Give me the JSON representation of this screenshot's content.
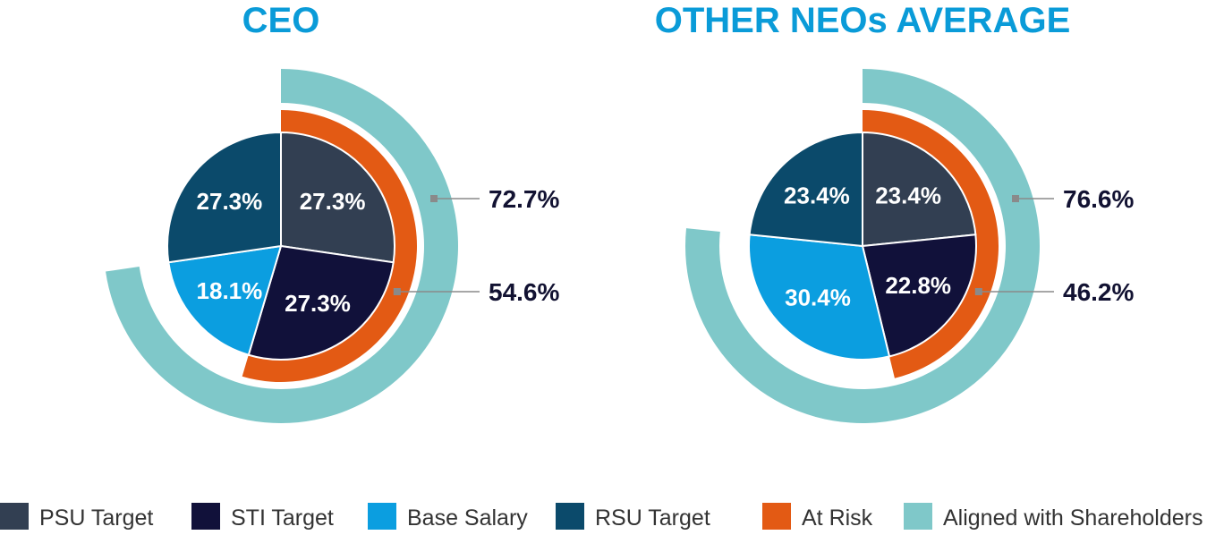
{
  "colors": {
    "title": "#0a9bd8",
    "callout_text": "#121232",
    "callout_line": "#8a8a8a",
    "legend_text": "#333333"
  },
  "legend": {
    "items": [
      {
        "label": "PSU Target",
        "color": "#323f52"
      },
      {
        "label": "STI Target",
        "color": "#11113a"
      },
      {
        "label": "Base Salary",
        "color": "#0b9ee0"
      },
      {
        "label": "RSU Target",
        "color": "#0b4a6b"
      },
      {
        "label": "At Risk",
        "color": "#e35a14"
      },
      {
        "label": "Aligned with Shareholders",
        "color": "#7fc8c9"
      }
    ]
  },
  "chart_data": [
    {
      "type": "pie",
      "title": "CEO",
      "slices": [
        {
          "name": "PSU Target",
          "value": 27.3,
          "label": "27.3%"
        },
        {
          "name": "STI Target",
          "value": 27.3,
          "label": "27.3%"
        },
        {
          "name": "Base Salary",
          "value": 18.1,
          "label": "18.1%"
        },
        {
          "name": "RSU Target",
          "value": 27.3,
          "label": "27.3%"
        }
      ],
      "rings": [
        {
          "name": "At Risk",
          "value": 54.6,
          "label": "54.6%"
        },
        {
          "name": "Aligned with Shareholders",
          "value": 72.7,
          "label": "72.7%"
        }
      ]
    },
    {
      "type": "pie",
      "title": "OTHER NEOs AVERAGE",
      "slices": [
        {
          "name": "PSU Target",
          "value": 23.4,
          "label": "23.4%"
        },
        {
          "name": "STI Target",
          "value": 22.8,
          "label": "22.8%"
        },
        {
          "name": "Base Salary",
          "value": 30.4,
          "label": "30.4%"
        },
        {
          "name": "RSU Target",
          "value": 23.4,
          "label": "23.4%"
        }
      ],
      "rings": [
        {
          "name": "At Risk",
          "value": 46.2,
          "label": "46.2%"
        },
        {
          "name": "Aligned with Shareholders",
          "value": 76.6,
          "label": "76.6%"
        }
      ]
    }
  ]
}
